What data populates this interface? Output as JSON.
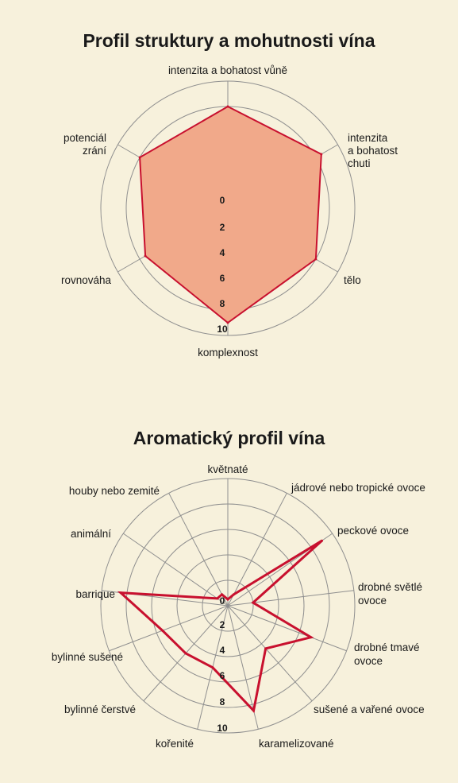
{
  "chart_data": [
    {
      "type": "radar",
      "title": "Profil struktury a mohutnosti vína",
      "axes": [
        "intenzita a bohatost vůně",
        "intenzita a bohatost chuti",
        "tělo",
        "komplexnost",
        "rovnováha",
        "potenciál zrání"
      ],
      "values": [
        8,
        8.5,
        8,
        9,
        7.5,
        8
      ],
      "ticks": [
        "0",
        "2",
        "4",
        "6",
        "8",
        "10"
      ],
      "range": [
        0,
        10
      ],
      "grid": true,
      "fill_color": "#f1a98a",
      "line_color": "#c8102e"
    },
    {
      "type": "radar",
      "title": "Aromatický profil vína",
      "axes": [
        "květnaté",
        "jádrové nebo tropické ovoce",
        "peckové ovoce",
        "drobné světlé ovoce",
        "drobné tmavé ovoce",
        "sušené a vařené ovoce",
        "karamelizované",
        "kořenité",
        "bylinné čerstvé",
        "bylinné sušené",
        "barrique",
        "animální",
        "houby nebo zemité"
      ],
      "values": [
        0.5,
        1,
        9,
        2,
        7,
        4.5,
        8.5,
        5,
        5,
        5.5,
        8.5,
        1,
        1
      ],
      "ticks": [
        "0",
        "2",
        "4",
        "6",
        "8",
        "10"
      ],
      "range": [
        0,
        10
      ],
      "grid": true,
      "line_color": "#c8102e"
    }
  ]
}
